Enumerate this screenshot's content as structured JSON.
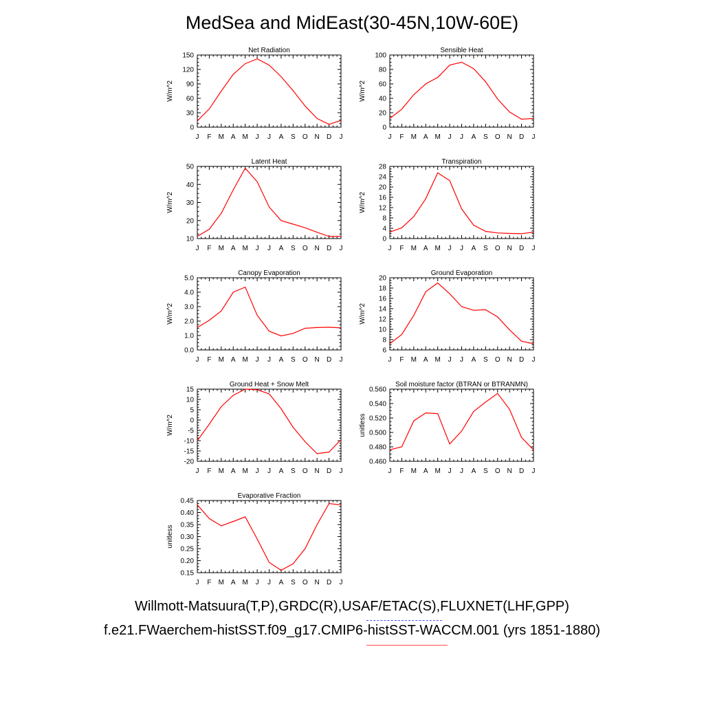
{
  "title": "MedSea and MidEast(30-45N,10W-60E)",
  "legend": {
    "observations": "Willmott-Matsuura(T,P),GRDC(R),USAF/ETAC(S),FLUXNET(LHF,GPP)",
    "model": "f.e21.FWaerchem-histSST.f09_g17.CMIP6-histSST-WACCM.001 (yrs 1851-1880)",
    "model_color": "#ff0000",
    "obs_color": "#4b4bff"
  },
  "chart_data": [
    {
      "type": "line",
      "title": "Net Radiation",
      "ylabel": "W/m^2",
      "categories": [
        "J",
        "F",
        "M",
        "A",
        "M",
        "J",
        "J",
        "A",
        "S",
        "O",
        "N",
        "D",
        "J"
      ],
      "ylim": [
        0,
        150
      ],
      "yticks": [
        "0",
        "30",
        "60",
        "90",
        "120",
        "150"
      ],
      "values": [
        13,
        38,
        75,
        110,
        132,
        142,
        129,
        105,
        76,
        44,
        18,
        6,
        14
      ]
    },
    {
      "type": "line",
      "title": "Sensible Heat",
      "ylabel": "W/m^2",
      "categories": [
        "J",
        "F",
        "M",
        "A",
        "M",
        "J",
        "J",
        "A",
        "S",
        "O",
        "N",
        "D",
        "J"
      ],
      "ylim": [
        0,
        100
      ],
      "yticks": [
        "0",
        "20",
        "40",
        "60",
        "80",
        "100"
      ],
      "values": [
        12,
        25,
        45,
        60,
        69,
        86,
        90,
        81,
        63,
        39,
        21,
        11,
        12
      ]
    },
    {
      "type": "line",
      "title": "Latent Heat",
      "ylabel": "W/m^2",
      "categories": [
        "J",
        "F",
        "M",
        "A",
        "M",
        "J",
        "J",
        "A",
        "S",
        "O",
        "N",
        "D",
        "J"
      ],
      "ylim": [
        10,
        50
      ],
      "yticks": [
        "10",
        "20",
        "30",
        "40",
        "50"
      ],
      "values": [
        11.2,
        15.2,
        24,
        37,
        49,
        41.5,
        27.5,
        20,
        18,
        16,
        13.5,
        11.2,
        11.2
      ]
    },
    {
      "type": "line",
      "title": "Transpiration",
      "ylabel": "W/m^2",
      "categories": [
        "J",
        "F",
        "M",
        "A",
        "M",
        "J",
        "J",
        "A",
        "S",
        "O",
        "N",
        "D",
        "J"
      ],
      "ylim": [
        0,
        28
      ],
      "yticks": [
        "0",
        "4",
        "8",
        "12",
        "16",
        "20",
        "24",
        "28"
      ],
      "values": [
        2.5,
        4.2,
        8.5,
        15.5,
        25.5,
        22.5,
        11.5,
        5.2,
        2.8,
        2.2,
        2.0,
        1.9,
        2.5
      ]
    },
    {
      "type": "line",
      "title": "Canopy Evaporation",
      "ylabel": "W/m^2",
      "categories": [
        "J",
        "F",
        "M",
        "A",
        "M",
        "J",
        "J",
        "A",
        "S",
        "O",
        "N",
        "D",
        "J"
      ],
      "ylim": [
        0,
        5
      ],
      "yticks": [
        "0.0",
        "1.0",
        "2.0",
        "3.0",
        "4.0",
        "5.0"
      ],
      "values": [
        1.55,
        2.05,
        2.7,
        4.0,
        4.35,
        2.4,
        1.3,
        0.97,
        1.15,
        1.5,
        1.55,
        1.57,
        1.53
      ]
    },
    {
      "type": "line",
      "title": "Ground Evaporation",
      "ylabel": "W/m^2",
      "categories": [
        "J",
        "F",
        "M",
        "A",
        "M",
        "J",
        "J",
        "A",
        "S",
        "O",
        "N",
        "D",
        "J"
      ],
      "ylim": [
        6,
        20
      ],
      "yticks": [
        "6",
        "8",
        "10",
        "12",
        "14",
        "16",
        "18",
        "20"
      ],
      "values": [
        7.2,
        9.0,
        12.7,
        17.3,
        19.0,
        16.9,
        14.4,
        13.7,
        13.8,
        12.4,
        9.9,
        7.7,
        7.2
      ]
    },
    {
      "type": "line",
      "title": "Ground Heat + Snow Melt",
      "ylabel": "W/m^2",
      "categories": [
        "J",
        "F",
        "M",
        "A",
        "M",
        "J",
        "J",
        "A",
        "S",
        "O",
        "N",
        "D",
        "J"
      ],
      "ylim": [
        -20,
        15
      ],
      "yticks": [
        "-20",
        "-15",
        "-10",
        "-5",
        "0",
        "5",
        "10",
        "15"
      ],
      "values": [
        -10,
        -2,
        6.5,
        12,
        15,
        14.7,
        12.7,
        5.5,
        -3.5,
        -10.5,
        -16.3,
        -15.5,
        -9.5
      ]
    },
    {
      "type": "line",
      "title": "Soil moisture factor (BTRAN or BTRANMN)",
      "ylabel": "unitless",
      "categories": [
        "J",
        "F",
        "M",
        "A",
        "M",
        "J",
        "J",
        "A",
        "S",
        "O",
        "N",
        "D",
        "J"
      ],
      "ylim": [
        0.46,
        0.56
      ],
      "yticks": [
        "0.460",
        "0.480",
        "0.500",
        "0.520",
        "0.540",
        "0.560"
      ],
      "values": [
        0.476,
        0.48,
        0.516,
        0.527,
        0.526,
        0.484,
        0.502,
        0.529,
        0.542,
        0.554,
        0.532,
        0.493,
        0.476
      ]
    },
    {
      "type": "line",
      "title": "Evaporative Fraction",
      "ylabel": "unitless",
      "categories": [
        "J",
        "F",
        "M",
        "A",
        "M",
        "J",
        "J",
        "A",
        "S",
        "O",
        "N",
        "D",
        "J"
      ],
      "ylim": [
        0.15,
        0.45
      ],
      "yticks": [
        "0.15",
        "0.20",
        "0.25",
        "0.30",
        "0.35",
        "0.40",
        "0.45"
      ],
      "values": [
        0.432,
        0.375,
        0.345,
        0.363,
        0.382,
        0.29,
        0.193,
        0.16,
        0.187,
        0.25,
        0.35,
        0.437,
        0.432
      ]
    }
  ]
}
